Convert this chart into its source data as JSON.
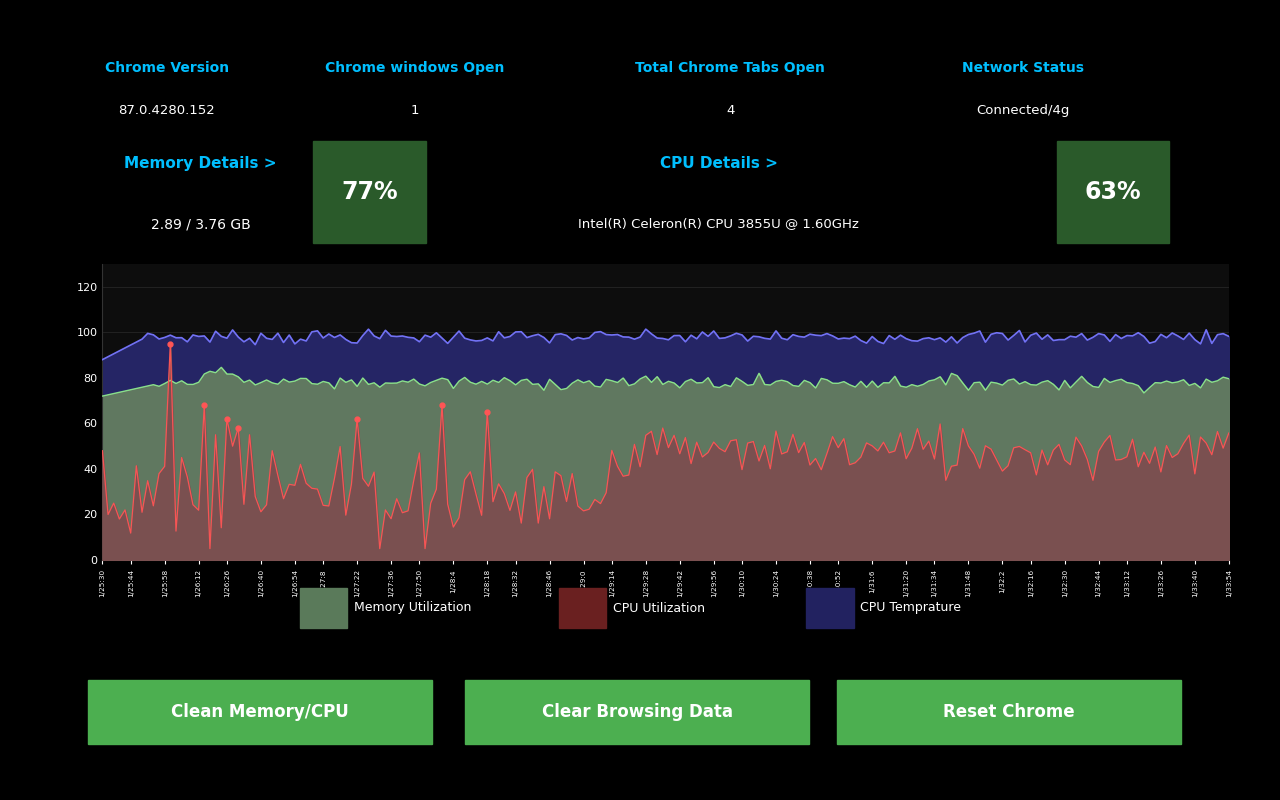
{
  "bg_color": "#000000",
  "panel_bg": "#111111",
  "green_color": "#4CAF50",
  "cyan_color": "#00BFFF",
  "white_color": "#FFFFFF",
  "header_labels": [
    "Chrome Version",
    "Chrome windows Open",
    "Total Chrome Tabs Open",
    "Network Status"
  ],
  "header_values": [
    "87.0.4280.152",
    "1",
    "4",
    "Connected/4g"
  ],
  "memory_label": "Memory Details >",
  "memory_value": "2.89 / 3.76 GB",
  "memory_pct": "77%",
  "cpu_label": "CPU Details >",
  "cpu_value": "Intel(R) Celeron(R) CPU 3855U @ 1.60GHz",
  "cpu_pct": "63%",
  "btn_labels": [
    "Clean Memory/CPU",
    "Clear Browsing Data",
    "Reset Chrome"
  ],
  "yticks": [
    0,
    20,
    40,
    60,
    80,
    100,
    120
  ],
  "ylim": [
    0,
    130
  ],
  "memory_fill_color": "#607860",
  "cpu_fill_color": "#7A5050",
  "temp_fill_color": "#252565",
  "memory_line_color": "#90EE90",
  "cpu_line_color": "#FF5555",
  "temp_line_color": "#7777FF",
  "legend_fill_memory": "#5a7a5a",
  "legend_fill_cpu": "#6a2020",
  "legend_fill_temp": "#222260",
  "legend_labels": [
    "Memory Utilization",
    "CPU Utilization",
    "CPU Temprature"
  ]
}
